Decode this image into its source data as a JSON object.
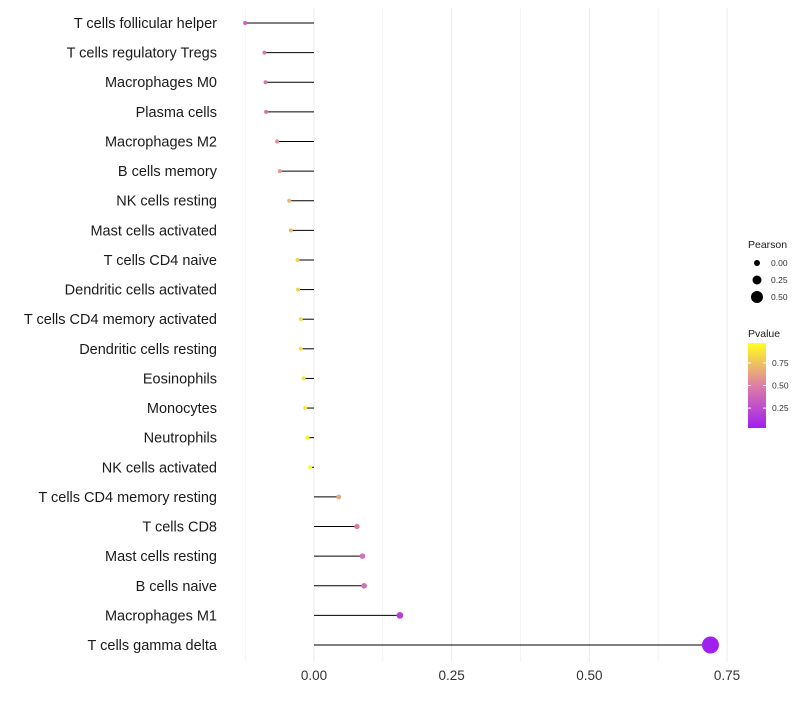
{
  "chart_data": {
    "type": "lollipop",
    "xlabel": "",
    "ylabel": "",
    "xlim": [
      -0.135,
      0.79
    ],
    "x_ticks": [
      {
        "value": 0.0,
        "label": "0.00"
      },
      {
        "value": 0.25,
        "label": "0.25"
      },
      {
        "value": 0.5,
        "label": "0.50"
      },
      {
        "value": 0.75,
        "label": "0.75"
      }
    ],
    "minor_gridlines": [
      -0.125,
      0.125,
      0.375,
      0.625
    ],
    "points": [
      {
        "category": "T cells follicular helper",
        "pearson": -0.125,
        "pvalue": 0.35
      },
      {
        "category": "T cells regulatory  Tregs",
        "pearson": -0.09,
        "pvalue": 0.45
      },
      {
        "category": "Macrophages M0",
        "pearson": -0.088,
        "pvalue": 0.45
      },
      {
        "category": "Plasma cells",
        "pearson": -0.087,
        "pvalue": 0.45
      },
      {
        "category": "Macrophages M2",
        "pearson": -0.067,
        "pvalue": 0.55
      },
      {
        "category": "B cells memory",
        "pearson": -0.062,
        "pvalue": 0.6
      },
      {
        "category": "NK cells resting",
        "pearson": -0.045,
        "pvalue": 0.7
      },
      {
        "category": "Mast cells activated",
        "pearson": -0.042,
        "pvalue": 0.7
      },
      {
        "category": "T cells CD4 naive",
        "pearson": -0.03,
        "pvalue": 0.8
      },
      {
        "category": "Dendritic cells activated",
        "pearson": -0.029,
        "pvalue": 0.8
      },
      {
        "category": "T cells CD4 memory activated",
        "pearson": -0.024,
        "pvalue": 0.85
      },
      {
        "category": "Dendritic cells resting",
        "pearson": -0.024,
        "pvalue": 0.85
      },
      {
        "category": "Eosinophils",
        "pearson": -0.019,
        "pvalue": 0.88
      },
      {
        "category": "Monocytes",
        "pearson": -0.016,
        "pvalue": 0.9
      },
      {
        "category": "Neutrophils",
        "pearson": -0.012,
        "pvalue": 0.92
      },
      {
        "category": "NK cells activated",
        "pearson": -0.007,
        "pvalue": 0.95
      },
      {
        "category": "T cells CD4 memory resting",
        "pearson": 0.045,
        "pvalue": 0.65
      },
      {
        "category": "T cells CD8",
        "pearson": 0.078,
        "pvalue": 0.48
      },
      {
        "category": "Mast cells resting",
        "pearson": 0.088,
        "pvalue": 0.42
      },
      {
        "category": "B cells naive",
        "pearson": 0.091,
        "pvalue": 0.42
      },
      {
        "category": "Macrophages M1",
        "pearson": 0.156,
        "pvalue": 0.2
      },
      {
        "category": "T cells gamma delta",
        "pearson": 0.72,
        "pvalue": 0.0
      }
    ],
    "legend_size": {
      "title": "Pearson",
      "entries": [
        {
          "value": 0.0,
          "label": "0.00"
        },
        {
          "value": 0.25,
          "label": "0.25"
        },
        {
          "value": 0.5,
          "label": "0.50"
        }
      ]
    },
    "legend_color": {
      "title": "Pvalue",
      "range": [
        0.03,
        0.97
      ],
      "ticks": [
        {
          "value": 0.75,
          "label": "0.75"
        },
        {
          "value": 0.5,
          "label": "0.50"
        },
        {
          "value": 0.25,
          "label": "0.25"
        }
      ],
      "colors": {
        "low": "#a020f0",
        "mid": "#dd7fa6",
        "high": "#ffff1e"
      }
    },
    "colors": {
      "background": "#ffffff",
      "gridline": "#ebebeb",
      "stem": "#000000",
      "point_outline": "#333333"
    },
    "legend_position": "right"
  }
}
